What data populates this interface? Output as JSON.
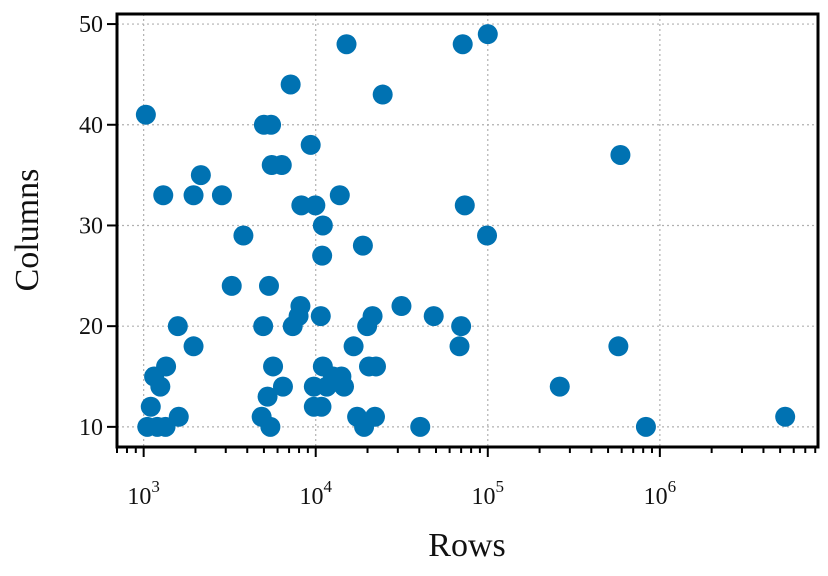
{
  "chart_data": {
    "type": "scatter",
    "xlabel": "Rows",
    "ylabel": "Columns",
    "x_scale": "log",
    "xlim": [
      700,
      8300000
    ],
    "ylim": [
      8,
      51
    ],
    "x_ticks": [
      1000,
      10000,
      100000,
      1000000
    ],
    "x_tick_labels": [
      {
        "base": "10",
        "exp": "3"
      },
      {
        "base": "10",
        "exp": "4"
      },
      {
        "base": "10",
        "exp": "5"
      },
      {
        "base": "10",
        "exp": "6"
      }
    ],
    "y_ticks": [
      10,
      20,
      30,
      40,
      50
    ],
    "y_tick_labels": [
      "10",
      "20",
      "30",
      "40",
      "50"
    ],
    "grid": true,
    "point_color": "#0072b2",
    "points": [
      {
        "x": 1030,
        "y": 41
      },
      {
        "x": 1050,
        "y": 10
      },
      {
        "x": 1100,
        "y": 12
      },
      {
        "x": 1150,
        "y": 15
      },
      {
        "x": 1200,
        "y": 10
      },
      {
        "x": 1250,
        "y": 14
      },
      {
        "x": 1300,
        "y": 33
      },
      {
        "x": 1350,
        "y": 16
      },
      {
        "x": 1340,
        "y": 10
      },
      {
        "x": 1580,
        "y": 20
      },
      {
        "x": 1600,
        "y": 11
      },
      {
        "x": 1950,
        "y": 18
      },
      {
        "x": 1950,
        "y": 33
      },
      {
        "x": 2150,
        "y": 35
      },
      {
        "x": 2850,
        "y": 33
      },
      {
        "x": 3250,
        "y": 24
      },
      {
        "x": 3800,
        "y": 29
      },
      {
        "x": 4850,
        "y": 11
      },
      {
        "x": 4950,
        "y": 20
      },
      {
        "x": 5000,
        "y": 40
      },
      {
        "x": 5250,
        "y": 13
      },
      {
        "x": 5350,
        "y": 24
      },
      {
        "x": 5450,
        "y": 10
      },
      {
        "x": 5500,
        "y": 40
      },
      {
        "x": 5550,
        "y": 36
      },
      {
        "x": 5650,
        "y": 16
      },
      {
        "x": 6350,
        "y": 36
      },
      {
        "x": 6450,
        "y": 14
      },
      {
        "x": 7150,
        "y": 44
      },
      {
        "x": 7350,
        "y": 20
      },
      {
        "x": 7950,
        "y": 21
      },
      {
        "x": 8150,
        "y": 22
      },
      {
        "x": 8250,
        "y": 32
      },
      {
        "x": 9350,
        "y": 38
      },
      {
        "x": 9750,
        "y": 14
      },
      {
        "x": 9750,
        "y": 12
      },
      {
        "x": 9950,
        "y": 32
      },
      {
        "x": 10800,
        "y": 12
      },
      {
        "x": 10700,
        "y": 21
      },
      {
        "x": 10900,
        "y": 27
      },
      {
        "x": 11000,
        "y": 30
      },
      {
        "x": 11000,
        "y": 16
      },
      {
        "x": 11600,
        "y": 14
      },
      {
        "x": 12600,
        "y": 15
      },
      {
        "x": 13800,
        "y": 33
      },
      {
        "x": 14100,
        "y": 15
      },
      {
        "x": 14600,
        "y": 14
      },
      {
        "x": 15100,
        "y": 48
      },
      {
        "x": 16600,
        "y": 18
      },
      {
        "x": 17400,
        "y": 11
      },
      {
        "x": 18800,
        "y": 28
      },
      {
        "x": 19100,
        "y": 10
      },
      {
        "x": 19900,
        "y": 20
      },
      {
        "x": 20400,
        "y": 16
      },
      {
        "x": 21400,
        "y": 21
      },
      {
        "x": 22100,
        "y": 11
      },
      {
        "x": 22400,
        "y": 16
      },
      {
        "x": 24500,
        "y": 43
      },
      {
        "x": 31500,
        "y": 22
      },
      {
        "x": 40500,
        "y": 10
      },
      {
        "x": 48500,
        "y": 21
      },
      {
        "x": 68500,
        "y": 18
      },
      {
        "x": 70000,
        "y": 20
      },
      {
        "x": 71500,
        "y": 48
      },
      {
        "x": 73500,
        "y": 32
      },
      {
        "x": 99000,
        "y": 29
      },
      {
        "x": 100000,
        "y": 49
      },
      {
        "x": 262000,
        "y": 14
      },
      {
        "x": 574000,
        "y": 18
      },
      {
        "x": 590000,
        "y": 37
      },
      {
        "x": 830000,
        "y": 10
      },
      {
        "x": 5350000,
        "y": 11
      }
    ]
  }
}
